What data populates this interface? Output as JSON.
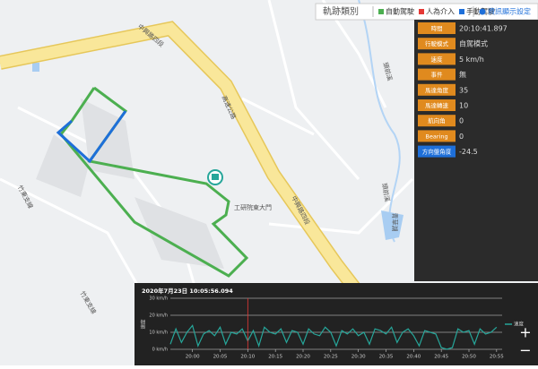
{
  "legend": {
    "title": "軌跡類別",
    "items": [
      {
        "label": "自動駕駛",
        "color": "#4caf50"
      },
      {
        "label": "人為介入",
        "color": "#e53935"
      },
      {
        "label": "手動駕駛",
        "color": "#1e6fd9"
      }
    ],
    "settings": "資訊顯示設定"
  },
  "map_labels": [
    "中興路四段",
    "高速公路",
    "中興路四段",
    "竹東支線",
    "竹東支線",
    "頭前溪",
    "頭前溪",
    "工研院東大門",
    "青草湖"
  ],
  "info": [
    {
      "label": "時間",
      "value": "20:10:41.897",
      "color": "#e08a1e"
    },
    {
      "label": "行駛模式",
      "value": "自駕模式",
      "color": "#e08a1e"
    },
    {
      "label": "速度",
      "value": "5 km/h",
      "color": "#e08a1e"
    },
    {
      "label": "事件",
      "value": "無",
      "color": "#e08a1e"
    },
    {
      "label": "馬達角度",
      "value": "35",
      "color": "#e08a1e"
    },
    {
      "label": "馬達轉速",
      "value": "10",
      "color": "#e08a1e"
    },
    {
      "label": "航向角",
      "value": "0",
      "color": "#e08a1e"
    },
    {
      "label": "Bearing",
      "value": "0",
      "color": "#e08a1e"
    },
    {
      "label": "方向盤角度",
      "value": "-24.5",
      "color": "#1e6fd9"
    }
  ],
  "chart_data": {
    "type": "line",
    "title": "2020年7月23日 10:05:56.094",
    "y_label": "速度",
    "series": [
      {
        "name": "速度",
        "color": "#26a69a",
        "x": [
          1196,
          1197,
          1198,
          1199,
          1200,
          1201,
          1202,
          1203,
          1204,
          1205,
          1206,
          1207,
          1208,
          1209,
          1210,
          1211,
          1212,
          1213,
          1214,
          1215,
          1216,
          1217,
          1218,
          1219,
          1220,
          1221,
          1222,
          1223,
          1224,
          1225,
          1226,
          1227,
          1228,
          1229,
          1230,
          1231,
          1232,
          1233,
          1234,
          1235,
          1236,
          1237,
          1238,
          1239,
          1240,
          1241,
          1242,
          1243,
          1244,
          1245,
          1246,
          1247,
          1248,
          1249,
          1250,
          1251,
          1252,
          1253,
          1254,
          1255
        ],
        "values": [
          3,
          12,
          4,
          10,
          14,
          2,
          9,
          11,
          8,
          13,
          3,
          10,
          9,
          12,
          5,
          11,
          2,
          13,
          10,
          9,
          12,
          4,
          11,
          10,
          3,
          12,
          9,
          8,
          13,
          10,
          2,
          11,
          9,
          12,
          8,
          10,
          3,
          12,
          11,
          9,
          13,
          4,
          10,
          12,
          8,
          2,
          11,
          10,
          9,
          1,
          0,
          1,
          12,
          10,
          11,
          3,
          12,
          9,
          10,
          13
        ]
      }
    ],
    "cursor": 1210,
    "xlim": [
      1196,
      1256
    ],
    "ylim": [
      0,
      30
    ],
    "xticks": [
      {
        "value": 1200,
        "label": "20:00"
      },
      {
        "value": 1205,
        "label": "20:05"
      },
      {
        "value": 1210,
        "label": "20:10"
      },
      {
        "value": 1215,
        "label": "20:15"
      },
      {
        "value": 1220,
        "label": "20:20"
      },
      {
        "value": 1225,
        "label": "20:25"
      },
      {
        "value": 1230,
        "label": "20:30"
      },
      {
        "value": 1235,
        "label": "20:35"
      },
      {
        "value": 1240,
        "label": "20:40"
      },
      {
        "value": 1245,
        "label": "20:45"
      },
      {
        "value": 1250,
        "label": "20:50"
      },
      {
        "value": 1255,
        "label": "20:55"
      }
    ],
    "yticks": [
      {
        "value": 0,
        "label": "0 km/h"
      },
      {
        "value": 10,
        "label": "10 km/h"
      },
      {
        "value": 20,
        "label": "20 km/h"
      },
      {
        "value": 30,
        "label": "30 km/h"
      }
    ],
    "grid": true,
    "legend": "right"
  }
}
